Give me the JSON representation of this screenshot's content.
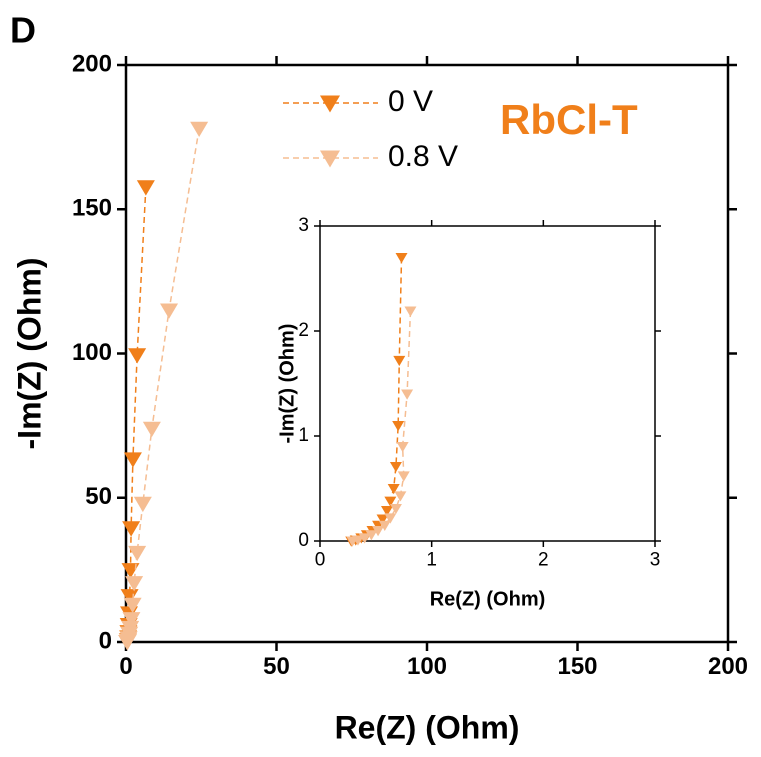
{
  "panel_label": "D",
  "chart_data": [
    {
      "type": "scatter",
      "annotation": "RbCl-T",
      "x_label": "Re(Z) (Ohm)",
      "y_label": "-Im(Z) (Ohm)",
      "xlim": [
        0,
        200
      ],
      "ylim": [
        0,
        200
      ],
      "xticks": [
        0,
        50,
        100,
        150,
        200
      ],
      "yticks": [
        0,
        50,
        100,
        150,
        200
      ],
      "marker": "triangle-down",
      "line_style": "dashed",
      "series": [
        {
          "name": "0 V",
          "color": "#f07f1a",
          "x": [
            6.6,
            3.7,
            2.3,
            1.7,
            1.5,
            1.2,
            1.0,
            0.9,
            0.8,
            0.7,
            0.6,
            0.4
          ],
          "values": [
            157.7,
            99.5,
            63.4,
            39.5,
            25,
            16,
            10,
            6,
            3.5,
            1.7,
            0.7,
            0.1
          ]
        },
        {
          "name": "0.8 V",
          "color": "#f5bd92",
          "x": [
            24.3,
            14.3,
            8.6,
            5.6,
            3.7,
            2.7,
            2.2,
            1.8,
            1.4,
            1.1,
            0.9,
            0.7,
            0.4
          ],
          "values": [
            178,
            115,
            74,
            48,
            31,
            20.5,
            13,
            8,
            5,
            3,
            1.4,
            0.5,
            0.1
          ]
        }
      ]
    },
    {
      "type": "scatter",
      "x_label": "Re(Z) (Ohm)",
      "y_label": "-Im(Z) (Ohm)",
      "xlim": [
        0,
        3
      ],
      "ylim": [
        0,
        3
      ],
      "xticks": [
        0,
        1,
        2,
        3
      ],
      "yticks": [
        0,
        1,
        2,
        3
      ],
      "marker": "triangle-down",
      "line_style": "dashed",
      "series": [
        {
          "color": "#f07f1a",
          "x": [
            0.73,
            0.71,
            0.7,
            0.68,
            0.66,
            0.63,
            0.6,
            0.56,
            0.52,
            0.47,
            0.42,
            0.37,
            0.32,
            0.28
          ],
          "values": [
            2.7,
            1.72,
            1.1,
            0.71,
            0.5,
            0.38,
            0.29,
            0.21,
            0.15,
            0.1,
            0.06,
            0.03,
            0.01,
            0.0
          ]
        },
        {
          "color": "#f5bd92",
          "x": [
            0.81,
            0.78,
            0.74,
            0.75,
            0.72,
            0.68,
            0.63,
            0.58,
            0.52,
            0.46,
            0.4,
            0.34,
            0.29
          ],
          "values": [
            2.19,
            1.4,
            0.9,
            0.62,
            0.43,
            0.31,
            0.22,
            0.15,
            0.1,
            0.06,
            0.03,
            0.01,
            0.0
          ]
        }
      ]
    }
  ]
}
